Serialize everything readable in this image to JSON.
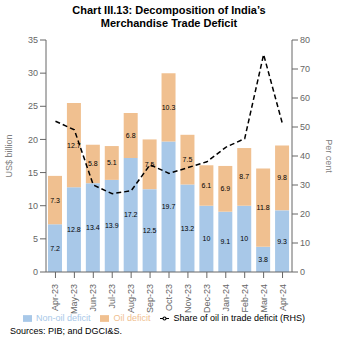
{
  "chart_data": {
    "type": "bar",
    "title": "Chart III.13: Decomposition of India’s",
    "subtitle": "Merchandise Trade Deficit",
    "categories": [
      "Apr-23",
      "May-23",
      "Jun-23",
      "Jul-23",
      "Aug-23",
      "Sep-23",
      "Oct-23",
      "Nov-23",
      "Dec-23",
      "Jan-24",
      "Feb-24",
      "Mar-24",
      "Apr-24"
    ],
    "series": [
      {
        "name": "Non-oil deficit",
        "type": "bar",
        "color": "#a8c8e8",
        "data_labels": true,
        "values": [
          7.2,
          12.8,
          13.4,
          13.9,
          17.2,
          12.5,
          19.7,
          13.2,
          10.0,
          9.1,
          10.0,
          3.8,
          9.3
        ]
      },
      {
        "name": "Oil deficit",
        "type": "bar",
        "color": "#f0c090",
        "data_labels": true,
        "values": [
          7.3,
          12.7,
          5.8,
          5.1,
          6.8,
          7.5,
          10.3,
          7.5,
          6.1,
          6.9,
          8.7,
          11.8,
          9.8
        ]
      },
      {
        "name": "Share of oil in trade deficit (RHS)",
        "type": "line",
        "axis": "y2",
        "color": "#000000",
        "line_style": "dashed",
        "values": [
          52,
          49,
          30,
          27,
          28,
          37,
          34,
          36,
          38,
          43,
          46,
          75,
          51
        ]
      }
    ],
    "stacked": true,
    "ylabel": "US$ billion",
    "y2label": "Per cent",
    "ylim": [
      0,
      35
    ],
    "yticks": [
      0,
      5,
      10,
      15,
      20,
      25,
      30,
      35
    ],
    "y2lim": [
      0,
      80
    ],
    "y2ticks": [
      0,
      10,
      20,
      30,
      40,
      50,
      60,
      70,
      80
    ],
    "grid": false,
    "legend": "bottom",
    "annotations": [
      "Sources: PIB; and DGCI&S."
    ]
  }
}
